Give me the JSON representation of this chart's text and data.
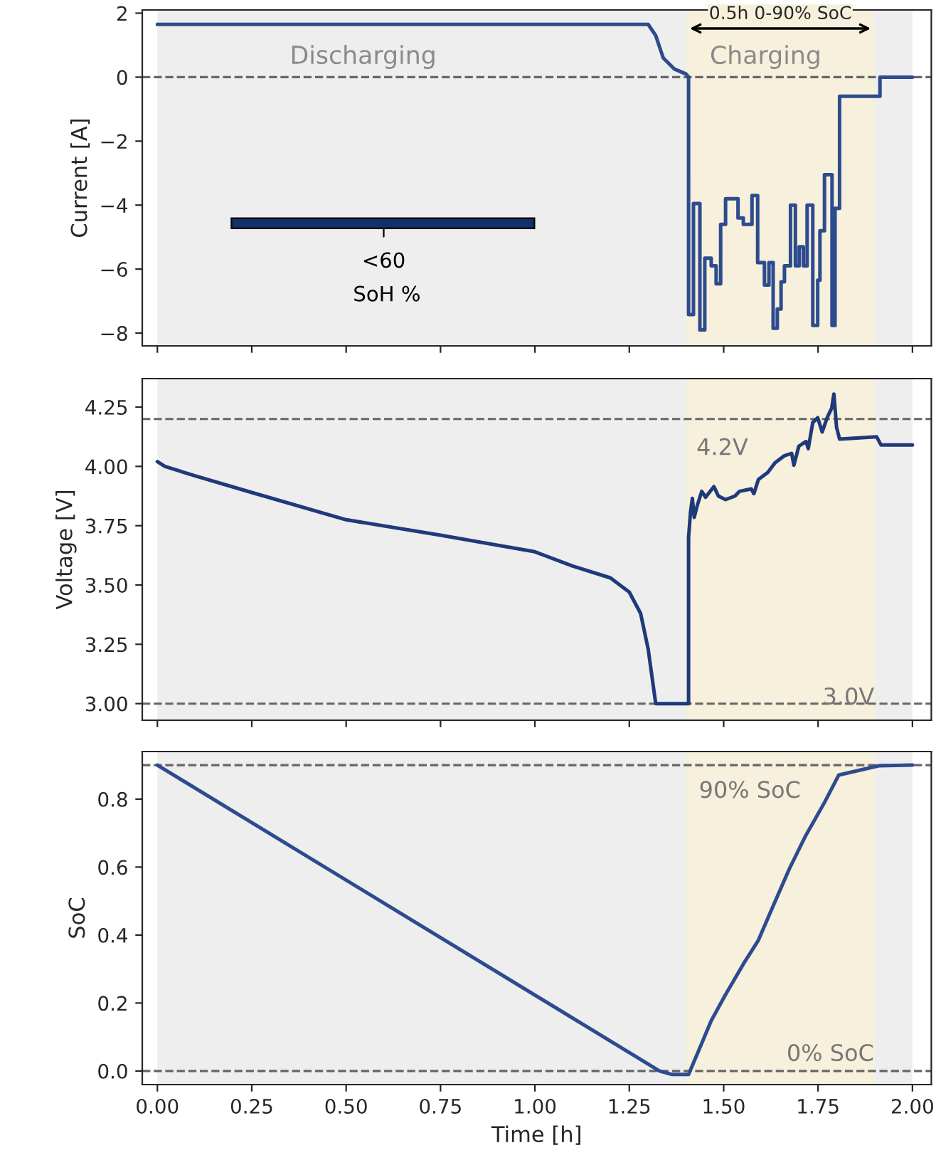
{
  "chart_data": [
    {
      "type": "line",
      "ylabel": "Current [A]",
      "xlim": [
        -0.04,
        2.05
      ],
      "ylim": [
        -8.4,
        2.1
      ],
      "tick_labels": "y",
      "xticks": [
        {
          "value": 0,
          "label": null
        },
        {
          "value": 0.25,
          "label": null
        },
        {
          "value": 0.5,
          "label": null
        },
        {
          "value": 0.75,
          "label": null
        },
        {
          "value": 1.0,
          "label": null
        },
        {
          "value": 1.25,
          "label": null
        },
        {
          "value": 1.5,
          "label": null
        },
        {
          "value": 1.75,
          "label": null
        },
        {
          "value": 2.0,
          "label": null
        }
      ],
      "yticks": [
        {
          "value": -8,
          "label": "−8"
        },
        {
          "value": -6,
          "label": "−6"
        },
        {
          "value": -4,
          "label": "−4"
        },
        {
          "value": -2,
          "label": "−2"
        },
        0,
        2
      ],
      "series": [
        {
          "type": "line",
          "color": "#2d4b8e",
          "x": [
            0,
            1.3,
            1.32,
            1.34,
            1.37,
            1.4,
            1.407
          ],
          "values": [
            1.65,
            1.65,
            1.3,
            0.6,
            0.25,
            0.1,
            0
          ]
        },
        {
          "type": "step",
          "color": "#2d4b8e",
          "x": [
            1.407,
            1.407,
            1.42,
            1.437,
            1.45,
            1.467,
            1.48,
            1.492,
            1.505,
            1.538,
            1.552,
            1.575,
            1.59,
            1.608,
            1.62,
            1.631,
            1.642,
            1.652,
            1.661,
            1.677,
            1.69,
            1.7,
            1.711,
            1.721,
            1.736,
            1.749,
            1.755,
            1.767,
            1.787,
            1.795,
            1.807,
            1.914,
            2.0
          ],
          "values": [
            0,
            -7.42,
            -3.95,
            -7.9,
            -5.66,
            -5.9,
            -6.46,
            -4.6,
            -3.8,
            -4.4,
            -4.6,
            -3.7,
            -5.8,
            -6.5,
            -5.8,
            -7.85,
            -7.25,
            -6.4,
            -5.9,
            -4.0,
            -5.9,
            -5.3,
            -5.9,
            -4.0,
            -7.76,
            -6.35,
            -4.8,
            -3.05,
            -7.76,
            -4.1,
            -0.6,
            0,
            0
          ]
        }
      ],
      "ref_lines": [
        {
          "axis": "y",
          "value": 0,
          "color": "#666666",
          "line_style": "dashed"
        }
      ],
      "bands": [
        {
          "axis": "x",
          "from": 0,
          "to": 2.0,
          "color": "#eeeeee"
        },
        {
          "axis": "x",
          "from": 1.4,
          "to": 1.9,
          "color": "#f6f0dc"
        }
      ],
      "annotations": [
        "Discharging",
        "Charging",
        "0.5h 0-90% SoC",
        "<60",
        "SoH %"
      ]
    },
    {
      "type": "line",
      "ylabel": "Voltage [V]",
      "xlim": [
        -0.04,
        2.05
      ],
      "ylim": [
        2.93,
        4.37
      ],
      "tick_labels": "y",
      "xticks": [
        {
          "value": 0,
          "label": null
        },
        {
          "value": 0.25,
          "label": null
        },
        {
          "value": 0.5,
          "label": null
        },
        {
          "value": 0.75,
          "label": null
        },
        {
          "value": 1.0,
          "label": null
        },
        {
          "value": 1.25,
          "label": null
        },
        {
          "value": 1.5,
          "label": null
        },
        {
          "value": 1.75,
          "label": null
        },
        {
          "value": 2.0,
          "label": null
        }
      ],
      "yticks": [
        {
          "value": 3.0,
          "label": "3.00"
        },
        {
          "value": 3.25,
          "label": "3.25"
        },
        {
          "value": 3.5,
          "label": "3.50"
        },
        {
          "value": 3.75,
          "label": "3.75"
        },
        {
          "value": 4.0,
          "label": "4.00"
        },
        {
          "value": 4.25,
          "label": "4.25"
        }
      ],
      "series": [
        {
          "type": "line",
          "color": "#1f3a7a",
          "x": [
            0,
            0.02,
            0.1,
            0.25,
            0.5,
            0.75,
            1.0,
            1.1,
            1.2,
            1.25,
            1.28,
            1.3,
            1.32,
            1.407,
            1.407,
            1.412,
            1.417,
            1.422,
            1.43,
            1.442,
            1.452,
            1.474,
            1.486,
            1.505,
            1.53,
            1.542,
            1.573,
            1.58,
            1.592,
            1.617,
            1.636,
            1.661,
            1.68,
            1.686,
            1.699,
            1.718,
            1.724,
            1.736,
            1.749,
            1.761,
            1.774,
            1.786,
            1.792,
            1.799,
            1.807,
            1.905,
            1.917,
            2.0
          ],
          "values": [
            4.02,
            4.0,
            3.96,
            3.89,
            3.775,
            3.71,
            3.64,
            3.58,
            3.53,
            3.47,
            3.38,
            3.23,
            3.0,
            3.0,
            3.7,
            3.805,
            3.865,
            3.785,
            3.835,
            3.895,
            3.87,
            3.915,
            3.875,
            3.86,
            3.875,
            3.895,
            3.905,
            3.885,
            3.945,
            3.975,
            4.015,
            4.045,
            4.055,
            4.005,
            4.085,
            4.105,
            4.075,
            4.185,
            4.205,
            4.145,
            4.205,
            4.245,
            4.305,
            4.165,
            4.115,
            4.125,
            4.09,
            4.09
          ]
        }
      ],
      "ref_lines": [
        {
          "axis": "y",
          "value": 4.2,
          "color": "#666666",
          "line_style": "dashed"
        },
        {
          "axis": "y",
          "value": 3.0,
          "color": "#666666",
          "line_style": "dashed"
        }
      ],
      "bands": [
        {
          "axis": "x",
          "from": 0,
          "to": 2.0,
          "color": "#eeeeee"
        },
        {
          "axis": "x",
          "from": 1.4,
          "to": 1.9,
          "color": "#f6f0dc"
        }
      ],
      "annotations": [
        "4.2V",
        "3.0V"
      ]
    },
    {
      "type": "line",
      "ylabel": "SoC",
      "xlabel": "Time [h]",
      "xlim": [
        -0.04,
        2.05
      ],
      "ylim": [
        -0.04,
        0.94
      ],
      "xticks": [
        {
          "value": 0,
          "label": "0.00"
        },
        {
          "value": 0.25,
          "label": "0.25"
        },
        {
          "value": 0.5,
          "label": "0.50"
        },
        {
          "value": 0.75,
          "label": "0.75"
        },
        {
          "value": 1.0,
          "label": "1.00"
        },
        {
          "value": 1.25,
          "label": "1.25"
        },
        {
          "value": 1.5,
          "label": "1.50"
        },
        {
          "value": 1.75,
          "label": "1.75"
        },
        {
          "value": 2.0,
          "label": "2.00"
        }
      ],
      "yticks": [
        {
          "value": 0.0,
          "label": "0.0"
        },
        0.2,
        0.4,
        0.6,
        0.8
      ],
      "series": [
        {
          "type": "line",
          "color": "#2d4b8e",
          "x": [
            0,
            1.33,
            1.362,
            1.407,
            1.43,
            1.467,
            1.505,
            1.555,
            1.592,
            1.63,
            1.674,
            1.717,
            1.767,
            1.805,
            1.911,
            2.0
          ],
          "values": [
            0.9,
            0.0,
            -0.01,
            -0.01,
            0.05,
            0.148,
            0.225,
            0.32,
            0.385,
            0.483,
            0.595,
            0.692,
            0.79,
            0.871,
            0.898,
            0.9
          ]
        }
      ],
      "ref_lines": [
        {
          "axis": "y",
          "value": 0.9,
          "color": "#666666",
          "line_style": "dashed"
        },
        {
          "axis": "y",
          "value": 0.0,
          "color": "#666666",
          "line_style": "dashed"
        }
      ],
      "bands": [
        {
          "axis": "x",
          "from": 0,
          "to": 2.0,
          "color": "#eeeeee"
        },
        {
          "axis": "x",
          "from": 1.4,
          "to": 1.9,
          "color": "#f6f0dc"
        }
      ],
      "annotations": [
        "90% SoC",
        "0% SoC"
      ]
    }
  ]
}
